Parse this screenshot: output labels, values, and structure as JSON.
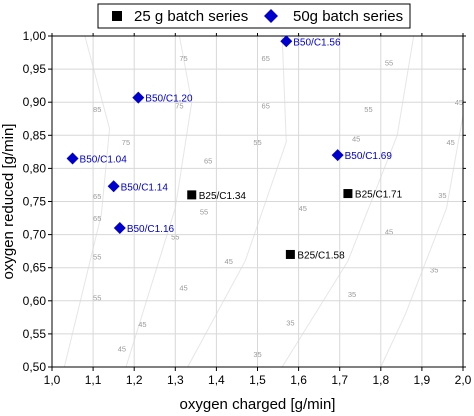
{
  "chart_data": {
    "type": "scatter",
    "xlabel": "oxygen charged [g/min]",
    "ylabel": "oxygen reduced [g/min]",
    "xlim": [
      1.0,
      2.0
    ],
    "ylim": [
      0.5,
      1.0
    ],
    "grid": true,
    "legend_position": "top",
    "x_ticks": [
      "1,0",
      "1,1",
      "1,2",
      "1,3",
      "1,4",
      "1,5",
      "1,6",
      "1,7",
      "1,8",
      "1,9",
      "2,0"
    ],
    "y_ticks": [
      "0,50",
      "0,55",
      "0,60",
      "0,65",
      "0,70",
      "0,75",
      "0,80",
      "0,85",
      "0,90",
      "0,95",
      "1,00"
    ],
    "series": [
      {
        "name": "25 g batch series",
        "marker": "square",
        "color": "#000000",
        "points": [
          {
            "x": 1.34,
            "y": 0.76,
            "label": "B25/C1.34"
          },
          {
            "x": 1.58,
            "y": 0.67,
            "label": "B25/C1.58"
          },
          {
            "x": 1.72,
            "y": 0.762,
            "label": "B25/C1.71"
          }
        ]
      },
      {
        "name": "50g batch series",
        "marker": "diamond",
        "color": "#0000cc",
        "points": [
          {
            "x": 1.05,
            "y": 0.815,
            "label": "B50/C1.04"
          },
          {
            "x": 1.15,
            "y": 0.773,
            "label": "B50/C1.14"
          },
          {
            "x": 1.165,
            "y": 0.71,
            "label": "B50/C1.16"
          },
          {
            "x": 1.21,
            "y": 0.907,
            "label": "B50/C1.20"
          },
          {
            "x": 1.57,
            "y": 0.992,
            "label": "B50/C1.56"
          },
          {
            "x": 1.695,
            "y": 0.82,
            "label": "B50/C1.69"
          }
        ]
      }
    ],
    "contour_labels": [
      {
        "text": "75",
        "x": 1.32,
        "y": 0.967
      },
      {
        "text": "65",
        "x": 1.52,
        "y": 0.967
      },
      {
        "text": "55",
        "x": 1.82,
        "y": 0.96
      },
      {
        "text": "85",
        "x": 1.11,
        "y": 0.89
      },
      {
        "text": "75",
        "x": 1.31,
        "y": 0.895
      },
      {
        "text": "65",
        "x": 1.52,
        "y": 0.895
      },
      {
        "text": "55",
        "x": 1.77,
        "y": 0.89
      },
      {
        "text": "45",
        "x": 1.99,
        "y": 0.9
      },
      {
        "text": "75",
        "x": 1.18,
        "y": 0.84
      },
      {
        "text": "55",
        "x": 1.5,
        "y": 0.84
      },
      {
        "text": "45",
        "x": 1.74,
        "y": 0.845
      },
      {
        "text": "45",
        "x": 1.97,
        "y": 0.84
      },
      {
        "text": "65",
        "x": 1.38,
        "y": 0.812
      },
      {
        "text": "65",
        "x": 1.11,
        "y": 0.758
      },
      {
        "text": "55",
        "x": 1.37,
        "y": 0.735
      },
      {
        "text": "45",
        "x": 1.61,
        "y": 0.74
      },
      {
        "text": "35",
        "x": 1.95,
        "y": 0.76
      },
      {
        "text": "65",
        "x": 1.11,
        "y": 0.725
      },
      {
        "text": "55",
        "x": 1.3,
        "y": 0.697
      },
      {
        "text": "45",
        "x": 1.82,
        "y": 0.705
      },
      {
        "text": "55",
        "x": 1.11,
        "y": 0.667
      },
      {
        "text": "45",
        "x": 1.43,
        "y": 0.66
      },
      {
        "text": "35",
        "x": 1.93,
        "y": 0.647
      },
      {
        "text": "55",
        "x": 1.11,
        "y": 0.605
      },
      {
        "text": "45",
        "x": 1.32,
        "y": 0.62
      },
      {
        "text": "35",
        "x": 1.73,
        "y": 0.61
      },
      {
        "text": "45",
        "x": 1.22,
        "y": 0.565
      },
      {
        "text": "35",
        "x": 1.58,
        "y": 0.567
      },
      {
        "text": "45",
        "x": 1.17,
        "y": 0.528
      },
      {
        "text": "35",
        "x": 1.5,
        "y": 0.52
      }
    ]
  }
}
